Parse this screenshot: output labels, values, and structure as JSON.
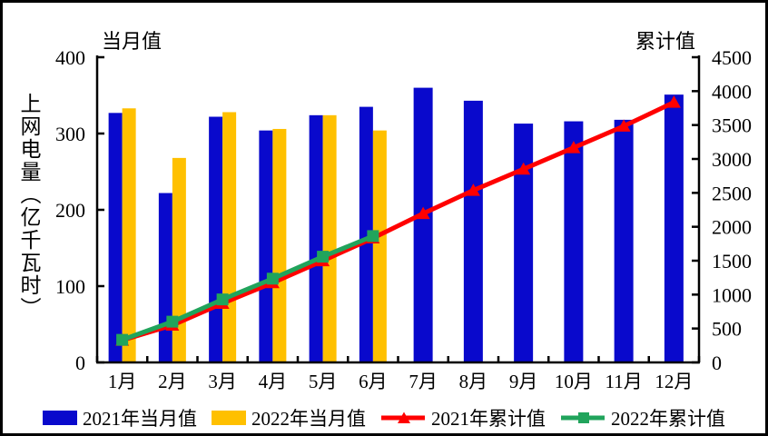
{
  "titles": {
    "left_axis_top": "当月值",
    "right_axis_top": "累计值",
    "y_axis_label": "上网电量（亿千瓦时）"
  },
  "colors": {
    "bar_2021": "#0909CC",
    "bar_2022": "#FFC000",
    "line_2021": "#FF0000",
    "line_2022": "#21A45C",
    "axis": "#000000",
    "frame_border": "#000000",
    "background": "#FFFFFF"
  },
  "legend": [
    {
      "label": "2021年当月值",
      "type": "bar",
      "marker": "rect",
      "color": "#0909CC"
    },
    {
      "label": "2022年当月值",
      "type": "bar",
      "marker": "rect",
      "color": "#FFC000"
    },
    {
      "label": "2021年累计值",
      "type": "line",
      "marker": "triangle",
      "color": "#FF0000"
    },
    {
      "label": "2022年累计值",
      "type": "line",
      "marker": "square",
      "color": "#21A45C"
    }
  ],
  "chart_data": {
    "type": "bar",
    "subtype": "combo-bar-line-dual-axis",
    "categories": [
      "1月",
      "2月",
      "3月",
      "4月",
      "5月",
      "6月",
      "7月",
      "8月",
      "9月",
      "10月",
      "11月",
      "12月"
    ],
    "series": [
      {
        "name": "2021年当月值",
        "kind": "bar",
        "axis": "left",
        "color": "#0909CC",
        "values": [
          327,
          222,
          322,
          304,
          324,
          335,
          360,
          343,
          313,
          316,
          318,
          351
        ]
      },
      {
        "name": "2022年当月值",
        "kind": "bar",
        "axis": "left",
        "color": "#FFC000",
        "values": [
          333,
          268,
          328,
          306,
          324,
          304,
          null,
          null,
          null,
          null,
          null,
          null
        ]
      },
      {
        "name": "2021年累计值",
        "kind": "line",
        "axis": "right",
        "color": "#FF0000",
        "marker": "triangle",
        "values": [
          327,
          549,
          871,
          1175,
          1499,
          1834,
          2194,
          2537,
          2850,
          3166,
          3484,
          3835
        ]
      },
      {
        "name": "2022年累计值",
        "kind": "line",
        "axis": "right",
        "color": "#21A45C",
        "marker": "square",
        "values": [
          333,
          601,
          929,
          1235,
          1559,
          1863,
          null,
          null,
          null,
          null,
          null,
          null
        ]
      }
    ],
    "left_axis": {
      "title": "当月值",
      "min": 0,
      "max": 400,
      "step": 100,
      "ticks": [
        0,
        100,
        200,
        300,
        400
      ]
    },
    "right_axis": {
      "title": "累计值",
      "min": 0,
      "max": 4500,
      "step": 500,
      "ticks": [
        0,
        500,
        1000,
        1500,
        2000,
        2500,
        3000,
        3500,
        4000,
        4500
      ]
    },
    "grid": false,
    "legend_position": "bottom",
    "title": "",
    "xlabel": "",
    "ylabel": "上网电量（亿千瓦时）"
  }
}
